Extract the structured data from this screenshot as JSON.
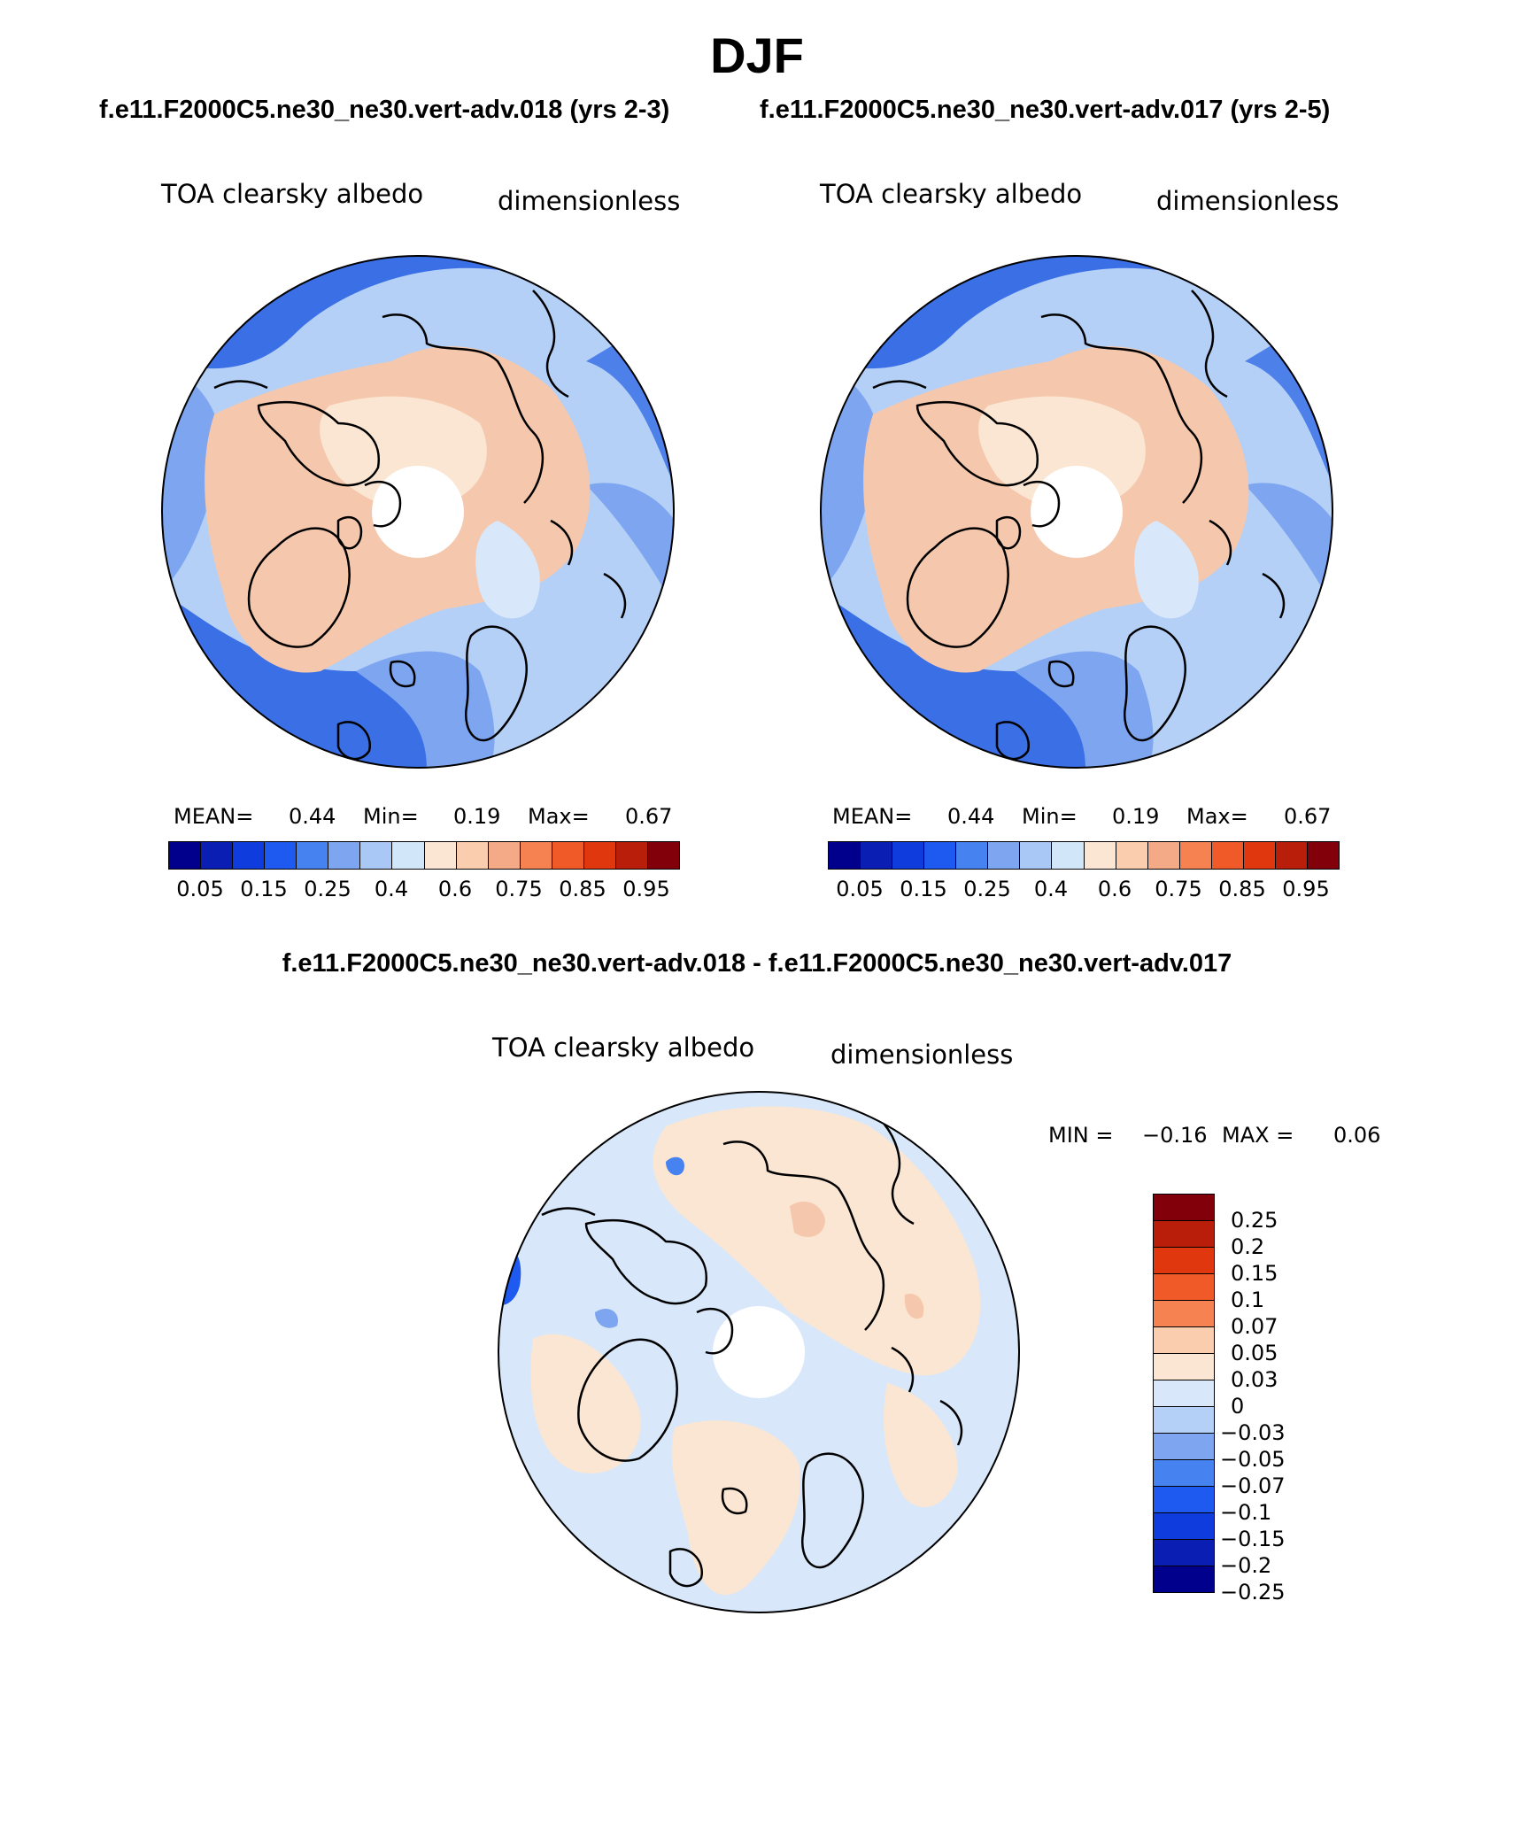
{
  "season": "DJF",
  "left_panel": {
    "case_title": "f.e11.F2000C5.ne30_ne30.vert-adv.018 (yrs 2-3)",
    "variable": "TOA clearsky albedo",
    "units": "dimensionless",
    "stats": {
      "mean_label": "MEAN=",
      "mean": "0.44",
      "min_label": "Min=",
      "min": "0.19",
      "max_label": "Max=",
      "max": "0.67"
    }
  },
  "right_panel": {
    "case_title": "f.e11.F2000C5.ne30_ne30.vert-adv.017 (yrs 2-5)",
    "variable": "TOA clearsky albedo",
    "units": "dimensionless",
    "stats": {
      "mean_label": "MEAN=",
      "mean": "0.44",
      "min_label": "Min=",
      "min": "0.19",
      "max_label": "Max=",
      "max": "0.67"
    }
  },
  "diff_panel": {
    "title": "f.e11.F2000C5.ne30_ne30.vert-adv.018 - f.e11.F2000C5.ne30_ne30.vert-adv.017",
    "variable": "TOA clearsky albedo",
    "units": "dimensionless",
    "stats": {
      "min_label": "MIN =",
      "min": "−0.16",
      "max_label": "MAX =",
      "max": "0.06"
    }
  },
  "abs_colorbar": {
    "colors": [
      "#00008c",
      "#0a1eb4",
      "#0f3cdc",
      "#1e5af0",
      "#4682f0",
      "#7ea5f0",
      "#aac8f5",
      "#d2e6fa",
      "#fae6d2",
      "#facdaf",
      "#f5aa87",
      "#f58250",
      "#f05a28",
      "#e1370f",
      "#b91e0a",
      "#82000a"
    ],
    "tick_labels": [
      "0.05",
      "0.15",
      "0.25",
      "0.4",
      "0.6",
      "0.75",
      "0.85",
      "0.95"
    ]
  },
  "diff_colorbar": {
    "colors": [
      "#82000a",
      "#b91e0a",
      "#e1370f",
      "#f05a28",
      "#f58250",
      "#facdaf",
      "#fae6d2",
      "#d8e8fa",
      "#b4d0f7",
      "#7ea5f0",
      "#4682f0",
      "#1e5af0",
      "#0f3cdc",
      "#0a1eb4",
      "#00008c"
    ],
    "tick_labels": [
      "0.25",
      "0.2",
      "0.15",
      "0.1",
      "0.07",
      "0.05",
      "0.03",
      "0",
      "−0.03",
      "−0.05",
      "−0.07",
      "−0.1",
      "−0.15",
      "−0.2",
      "−0.25"
    ]
  },
  "map_colors": {
    "ocean_dark": "#3a6fe6",
    "ocean_mid": "#7ea5f0",
    "ocean_light": "#b4d0f7",
    "ice_light": "#d8e8fa",
    "land_warm": "#f5c8ad",
    "land_pale": "#fae6d2",
    "diff_pos": "#fae6d2",
    "diff_neg": "#d8e8fa"
  }
}
